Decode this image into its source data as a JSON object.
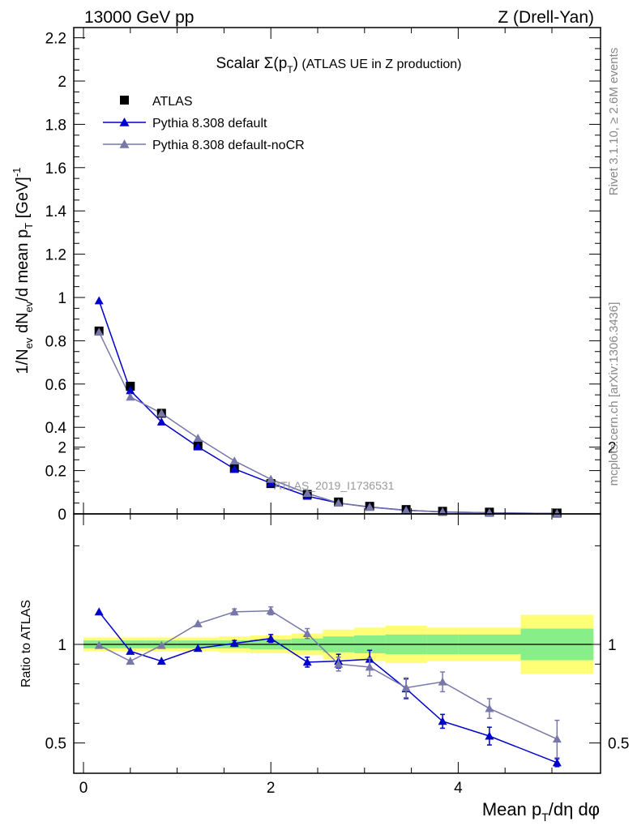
{
  "header": {
    "left": "13000 GeV pp",
    "right": "Z (Drell-Yan)"
  },
  "side_labels": {
    "rivet": "Rivet 3.1.10, ≥ 2.6M events",
    "mcplots": "mcplots.cern.ch [arXiv:1306.3436]"
  },
  "chart_data": [
    {
      "type": "scatter",
      "panel": "main",
      "title": "Scalar Σ(p_T) (ATLAS UE in Z production)",
      "title_parts": {
        "a": "Scalar ",
        "b": "Σ(p",
        "c": "T",
        "d": ")",
        "e": "  (ATLAS UE in Z production)"
      },
      "ylabel": "1/N_ev dN_ev/d mean p_T [GeV]^-1",
      "ylabel_parts": {
        "a": "1/N",
        "b": "ev",
        "c": " dN",
        "d": "ev",
        "e": "/d mean p",
        "f": "T",
        "g": "  [GeV]",
        "h": "-1"
      },
      "watermark": "ATLAS_2019_I1736531",
      "xlim": [
        -0.1,
        5.55
      ],
      "ylim": [
        0,
        2.25
      ],
      "yticks": [
        0,
        0.2,
        0.4,
        0.6,
        0.8,
        1,
        1.2,
        1.4,
        1.6,
        1.8,
        2,
        2.2
      ],
      "ytick_labels": [
        "0",
        "0.2",
        "0.4",
        "0.6",
        "0.8",
        "1",
        "1.2",
        "1.4",
        "1.6",
        "1.8",
        "2",
        "2.2"
      ],
      "legend": "top-left",
      "bin_edges": [
        0,
        0.333,
        0.667,
        1.0,
        1.444,
        1.778,
        2.222,
        2.556,
        2.889,
        3.222,
        3.667,
        4.0,
        4.667,
        5.444
      ],
      "x": [
        0.166,
        0.5,
        0.833,
        1.222,
        1.611,
        2.0,
        2.389,
        2.722,
        3.055,
        3.444,
        3.833,
        4.333,
        5.055
      ],
      "series": [
        {
          "name": "ATLAS",
          "color": "#000000",
          "marker": "square",
          "values": [
            0.845,
            0.59,
            0.465,
            0.315,
            0.21,
            0.14,
            0.09,
            0.055,
            0.035,
            0.02,
            0.012,
            0.008,
            0.004
          ]
        },
        {
          "name": "Pythia 8.308 default",
          "color": "#0000cc",
          "marker": "triangle",
          "values": [
            0.985,
            0.57,
            0.425,
            0.31,
            0.208,
            0.142,
            0.082,
            0.05,
            0.032,
            0.017,
            0.009,
            0.005,
            0.002
          ]
        },
        {
          "name": "Pythia 8.308 default-noCR",
          "color": "#7777aa",
          "marker": "triangle",
          "values": [
            0.84,
            0.54,
            0.465,
            0.35,
            0.245,
            0.16,
            0.095,
            0.05,
            0.031,
            0.016,
            0.01,
            0.005,
            0.002
          ]
        }
      ]
    },
    {
      "type": "line",
      "panel": "ratio",
      "ylabel": "Ratio to ATLAS",
      "xlabel": "Mean p_T/dη dφ",
      "xlabel_parts": {
        "a": "Mean p",
        "b": "T",
        "c": "/dη dφ"
      },
      "xlim": [
        -0.1,
        5.55
      ],
      "ylim": [
        0.35,
        2.3
      ],
      "yticks": [
        0.5,
        1,
        2
      ],
      "ytick_labels": [
        "0.5",
        "1",
        "2"
      ],
      "xticks": [
        0,
        2,
        4
      ],
      "xtick_labels": [
        "0",
        "2",
        "4"
      ],
      "bin_edges": [
        0,
        0.333,
        0.667,
        1.0,
        1.444,
        1.778,
        2.222,
        2.556,
        2.889,
        3.222,
        3.667,
        4.0,
        4.667,
        5.444
      ],
      "band_yellow": [
        0.035,
        0.035,
        0.035,
        0.035,
        0.04,
        0.045,
        0.055,
        0.075,
        0.085,
        0.095,
        0.085,
        0.085,
        0.15
      ],
      "band_green": [
        0.02,
        0.02,
        0.02,
        0.02,
        0.02,
        0.025,
        0.03,
        0.04,
        0.045,
        0.05,
        0.05,
        0.05,
        0.08
      ],
      "x": [
        0.166,
        0.5,
        0.833,
        1.222,
        1.611,
        2.0,
        2.389,
        2.722,
        3.055,
        3.444,
        3.833,
        4.333,
        5.055
      ],
      "series": [
        {
          "name": "Pythia 8.308 default",
          "color": "#0000cc",
          "values": [
            1.165,
            0.965,
            0.915,
            0.98,
            1.005,
            1.03,
            0.91,
            0.915,
            0.925,
            0.775,
            0.61,
            0.535,
            0.4
          ],
          "errors": [
            0.01,
            0.01,
            0.01,
            0.01,
            0.015,
            0.02,
            0.025,
            0.035,
            0.045,
            0.05,
            0.035,
            0.045,
            0.02
          ]
        },
        {
          "name": "Pythia 8.308 default-noCR",
          "color": "#7777aa",
          "values": [
            0.995,
            0.915,
            0.995,
            1.105,
            1.165,
            1.17,
            1.055,
            0.9,
            0.885,
            0.78,
            0.81,
            0.675,
            0.52
          ],
          "errors": [
            0.01,
            0.01,
            0.01,
            0.01,
            0.015,
            0.02,
            0.025,
            0.035,
            0.045,
            0.05,
            0.05,
            0.05,
            0.095
          ]
        }
      ]
    }
  ]
}
